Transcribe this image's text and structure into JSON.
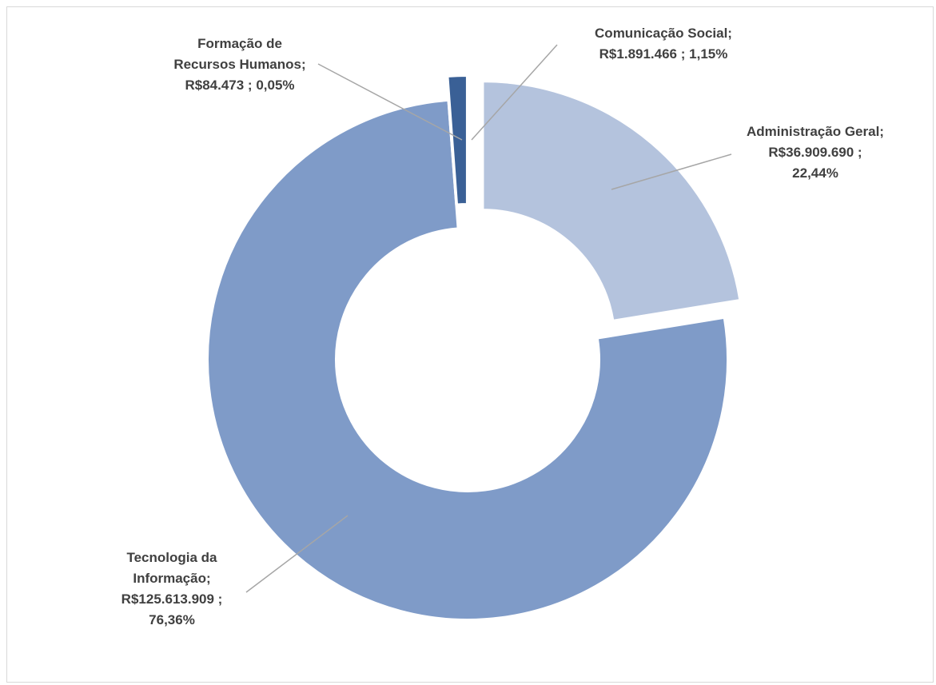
{
  "chart_data": {
    "type": "donut",
    "categories": [
      "Administração Geral;",
      "Tecnologia da Informação;",
      "Formação de Recursos Humanos;",
      "Comunicação Social;"
    ],
    "values": [
      36909690,
      125613909,
      84473,
      1891466
    ],
    "value_labels": [
      "R$36.909.690 ;",
      "R$125.613.909 ;",
      "R$84.473 ;",
      "R$1.891.466 ;"
    ],
    "percents": [
      22.44,
      76.36,
      0.05,
      1.15
    ],
    "percent_labels": [
      "22,44%",
      "76,36%",
      "0,05%",
      "1,15%"
    ],
    "colors": [
      "#b4c3dd",
      "#7f9bc8",
      "#2e5283",
      "#3a6096"
    ]
  }
}
